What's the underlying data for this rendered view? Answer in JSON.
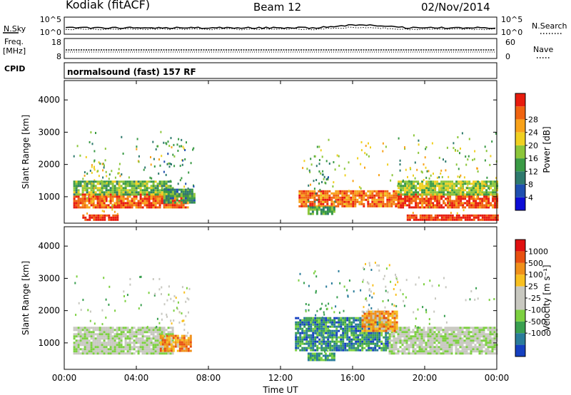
{
  "header": {
    "station": "Kodiak (fitACF)",
    "beam": "Beam 12",
    "date": "02/Nov/2014"
  },
  "top_panels": {
    "nsky": {
      "left_label": "N.Sky",
      "left_ticks": [
        "10^5",
        "10^0"
      ],
      "right_label": "N.Search",
      "right_ticks": [
        "10^5",
        "10^0"
      ]
    },
    "freq": {
      "left_label_1": "Freq.",
      "left_label_2": "[MHz]",
      "left_ticks": [
        "18",
        "8"
      ],
      "right_label": "Nave",
      "right_ticks": [
        "60",
        "0"
      ]
    },
    "cpid": {
      "label": "CPID",
      "text": "normalsound (fast) 157 RF"
    }
  },
  "chart_data": [
    {
      "type": "heatmap",
      "panel": "power",
      "ylabel": "Slant Range [km]",
      "ylim": [
        180,
        4600
      ],
      "yticks": [
        1000,
        2000,
        3000,
        4000
      ],
      "xlim": [
        0,
        24
      ],
      "xticks": [
        0,
        4,
        8,
        12,
        16,
        20,
        24
      ],
      "colorbar": {
        "label": "Power [dB]",
        "ticks": [
          "4",
          "8",
          "12",
          "16",
          "20",
          "24",
          "28"
        ],
        "colors": [
          "#0d0dd6",
          "#1f4fb0",
          "#2e7a6d",
          "#3a9a45",
          "#8cc63a",
          "#f0d020",
          "#f8a21a",
          "#f06410",
          "#e81c0e"
        ]
      },
      "regions": [
        {
          "x0": 0.5,
          "x1": 6.8,
          "r0": 700,
          "r1": 1100,
          "level": 0.85
        },
        {
          "x0": 0.5,
          "x1": 6.0,
          "r0": 1100,
          "r1": 1500,
          "level": 0.45
        },
        {
          "x0": 13.0,
          "x1": 18.5,
          "r0": 700,
          "r1": 1200,
          "level": 0.8
        },
        {
          "x0": 18.5,
          "x1": 24.0,
          "r0": 650,
          "r1": 1100,
          "level": 0.88
        },
        {
          "x0": 18.5,
          "x1": 24.0,
          "r0": 1100,
          "r1": 1500,
          "level": 0.5
        },
        {
          "x0": 1.0,
          "x1": 3.0,
          "r0": 300,
          "r1": 450,
          "level": 0.95
        },
        {
          "x0": 19.0,
          "x1": 24.0,
          "r0": 300,
          "r1": 450,
          "level": 0.95
        },
        {
          "x0": 5.5,
          "x1": 7.2,
          "r0": 850,
          "r1": 1250,
          "level": 0.35
        },
        {
          "x0": 13.5,
          "x1": 15.0,
          "r0": 500,
          "r1": 700,
          "level": 0.4
        }
      ]
    },
    {
      "type": "heatmap",
      "panel": "velocity",
      "ylabel": "Slant Range [km]",
      "xlabel": "Time UT",
      "ylim": [
        180,
        4600
      ],
      "yticks": [
        1000,
        2000,
        3000,
        4000
      ],
      "xlim": [
        0,
        24
      ],
      "xticks": [
        0,
        4,
        8,
        12,
        16,
        20,
        24
      ],
      "xticklabels": [
        "00:00",
        "04:00",
        "08:00",
        "12:00",
        "16:00",
        "20:00",
        "00:00"
      ],
      "colorbar": {
        "label": "Velocity [m s⁻¹]",
        "ticks": [
          "1000",
          "500",
          "100",
          "25",
          "-25",
          "-100",
          "-500",
          "-1000"
        ],
        "colors": [
          "#1540c0",
          "#2a7c9a",
          "#3aa050",
          "#7cd040",
          "#c8c8c0",
          "#c8c8c0",
          "#f8c020",
          "#f0901a",
          "#e85010",
          "#e01010"
        ]
      },
      "regions": [
        {
          "x0": 0.5,
          "x1": 6.0,
          "r0": 650,
          "r1": 1500,
          "level": 0.45
        },
        {
          "x0": 5.3,
          "x1": 7.0,
          "r0": 750,
          "r1": 1250,
          "level": 0.72
        },
        {
          "x0": 12.8,
          "x1": 18.0,
          "r0": 800,
          "r1": 1800,
          "level": 0.2
        },
        {
          "x0": 18.0,
          "x1": 24.0,
          "r0": 650,
          "r1": 1500,
          "level": 0.45
        },
        {
          "x0": 16.5,
          "x1": 18.5,
          "r0": 1400,
          "r1": 2000,
          "level": 0.7
        },
        {
          "x0": 13.5,
          "x1": 15.0,
          "r0": 500,
          "r1": 700,
          "level": 0.25
        }
      ]
    }
  ]
}
